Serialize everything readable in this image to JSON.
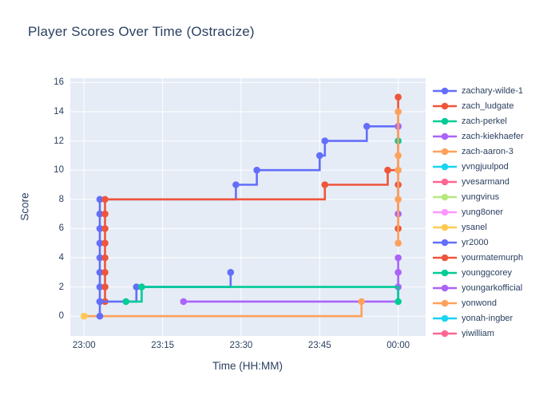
{
  "chart_data": {
    "type": "line",
    "line_shape": "step-hv",
    "title": "Player Scores Over Time (Ostracize)",
    "xlabel": "Time (HH:MM)",
    "ylabel": "Score",
    "x_ticks": [
      "23:00",
      "23:15",
      "23:30",
      "23:45",
      "00:00"
    ],
    "y_ticks": [
      0,
      2,
      4,
      6,
      8,
      10,
      12,
      14,
      16
    ],
    "ylim": [
      0,
      16
    ],
    "x_range": [
      "23:00",
      "00:00"
    ],
    "grid": true,
    "plot_bg_color": "#E5ECF6",
    "grid_color": "#ffffff",
    "font_color": "#2a3f5f",
    "legend_position": "right",
    "series": [
      {
        "name": "zachary-wilde-1",
        "color": "#636EFA",
        "points": [
          [
            "23:03",
            1
          ],
          [
            "23:03",
            2
          ],
          [
            "23:03",
            3
          ],
          [
            "23:03",
            4
          ],
          [
            "23:03",
            5
          ],
          [
            "23:03",
            6
          ],
          [
            "23:03",
            7
          ],
          [
            "23:03",
            8
          ],
          [
            "23:29",
            9
          ],
          [
            "23:33",
            10
          ],
          [
            "23:45",
            11
          ],
          [
            "23:46",
            12
          ],
          [
            "23:54",
            13
          ],
          [
            "00:00",
            13
          ]
        ]
      },
      {
        "name": "zach_ludgate",
        "color": "#EF553B",
        "points": [
          [
            "23:04",
            1
          ],
          [
            "23:04",
            2
          ],
          [
            "23:04",
            3
          ],
          [
            "23:04",
            4
          ],
          [
            "23:04",
            5
          ],
          [
            "23:04",
            6
          ],
          [
            "23:04",
            7
          ],
          [
            "23:04",
            8
          ],
          [
            "23:46",
            9
          ],
          [
            "23:58",
            10
          ],
          [
            "00:00",
            15
          ]
        ]
      },
      {
        "name": "zach-perkel",
        "color": "#00CC96",
        "points": [
          [
            "00:00",
            12
          ]
        ]
      },
      {
        "name": "zach-kiekhaefer",
        "color": "#AB63FA",
        "points": [
          [
            "23:19",
            1
          ],
          [
            "00:00",
            2
          ],
          [
            "00:00",
            3
          ],
          [
            "00:00",
            4
          ]
        ]
      },
      {
        "name": "zach-aaron-3",
        "color": "#FFA15A",
        "points": [
          [
            "23:00",
            0
          ],
          [
            "23:53",
            1
          ]
        ]
      },
      {
        "name": "yvngjuulpod",
        "color": "#19D3F3",
        "points": []
      },
      {
        "name": "yvesarmand",
        "color": "#FF6692",
        "points": []
      },
      {
        "name": "yungvirus",
        "color": "#B6E880",
        "points": []
      },
      {
        "name": "yung8oner",
        "color": "#FF97FF",
        "points": []
      },
      {
        "name": "ysanel",
        "color": "#FECB52",
        "points": [
          [
            "23:00",
            0
          ]
        ]
      },
      {
        "name": "yr2000",
        "color": "#636EFA",
        "points": [
          [
            "23:03",
            0
          ],
          [
            "23:03",
            1
          ],
          [
            "23:10",
            2
          ],
          [
            "23:28",
            3
          ]
        ]
      },
      {
        "name": "yourmatemurph",
        "color": "#EF553B",
        "points": [
          [
            "00:00",
            6
          ],
          [
            "00:00",
            9
          ]
        ]
      },
      {
        "name": "younggcorey",
        "color": "#00CC96",
        "points": [
          [
            "23:08",
            1
          ],
          [
            "23:11",
            2
          ],
          [
            "00:00",
            1
          ]
        ]
      },
      {
        "name": "youngarkofficial",
        "color": "#AB63FA",
        "points": [
          [
            "00:00",
            7
          ],
          [
            "00:00",
            13
          ]
        ]
      },
      {
        "name": "yonwond",
        "color": "#FFA15A",
        "points": [
          [
            "00:00",
            5
          ],
          [
            "00:00",
            8
          ],
          [
            "00:00",
            10
          ],
          [
            "00:00",
            11
          ],
          [
            "00:00",
            14
          ]
        ]
      },
      {
        "name": "yonah-ingber",
        "color": "#19D3F3",
        "points": []
      },
      {
        "name": "yiwilliam",
        "color": "#FF6692",
        "points": []
      }
    ]
  }
}
